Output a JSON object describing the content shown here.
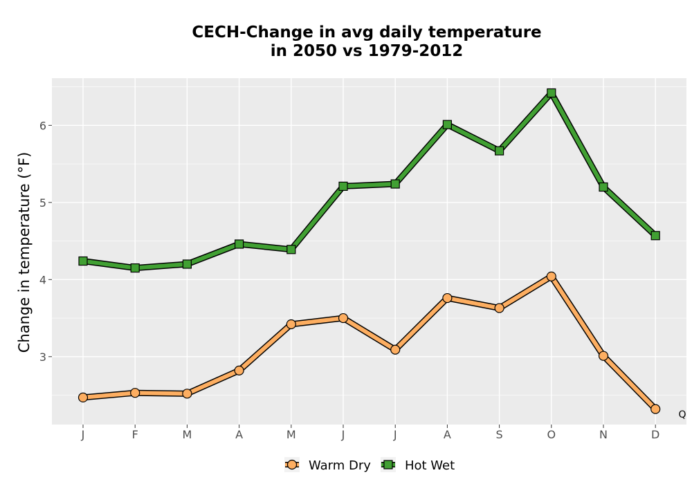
{
  "chart_data": {
    "type": "line",
    "title_line1": "CECH-Change in avg daily temperature",
    "title_line2": "in 2050 vs 1979-2012",
    "xlabel": "",
    "ylabel": "Change in temperature (°F)",
    "categories": [
      "J",
      "F",
      "M",
      "A",
      "M",
      "J",
      "J",
      "A",
      "S",
      "O",
      "N",
      "D"
    ],
    "y_ticks": [
      3,
      4,
      5,
      6
    ],
    "ylim": [
      2.1,
      6.6
    ],
    "grid": true,
    "legend_position": "bottom",
    "series": [
      {
        "name": "Warm Dry",
        "marker": "circle",
        "color": "#fdae61",
        "values": [
          2.47,
          2.53,
          2.52,
          2.82,
          3.42,
          3.5,
          3.09,
          3.76,
          3.63,
          4.04,
          3.01,
          2.32
        ]
      },
      {
        "name": "Hot Wet",
        "marker": "square",
        "color": "#41a033",
        "values": [
          4.24,
          4.15,
          4.2,
          4.46,
          4.39,
          5.21,
          5.24,
          6.01,
          5.67,
          6.42,
          5.2,
          4.57
        ]
      }
    ],
    "annotation": "Q"
  },
  "colors": {
    "panel_bg": "#ebebeb",
    "grid": "#ffffff",
    "outline": "#000000"
  }
}
